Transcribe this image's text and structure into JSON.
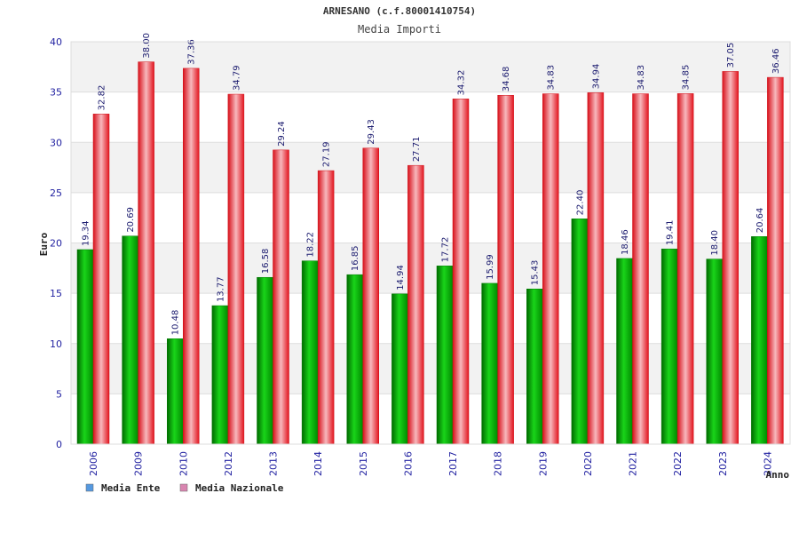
{
  "chart_data": {
    "type": "bar",
    "title": "ARNESANO (c.f.80001410754)",
    "subtitle": "Media Importi",
    "xlabel": "Anno",
    "ylabel": "Euro",
    "ylim": [
      0,
      40
    ],
    "yticks": [
      0,
      5,
      10,
      15,
      20,
      25,
      30,
      35,
      40
    ],
    "grid": true,
    "legend_position": "bottom-left",
    "categories": [
      "2006",
      "2009",
      "2010",
      "2012",
      "2013",
      "2014",
      "2015",
      "2016",
      "2017",
      "2018",
      "2019",
      "2020",
      "2021",
      "2022",
      "2023",
      "2024"
    ],
    "series": [
      {
        "name": "Media Ente",
        "color": "#00b000",
        "legend_color": "#5599e0",
        "values": [
          19.34,
          20.69,
          10.48,
          13.77,
          16.58,
          18.22,
          16.85,
          14.94,
          17.72,
          15.99,
          15.43,
          22.4,
          18.46,
          19.41,
          18.4,
          20.64
        ],
        "labels": [
          "19.34",
          "20.69",
          "10.48",
          "13.77",
          "16.58",
          "18.22",
          "16.85",
          "14.94",
          "17.72",
          "15.99",
          "15.43",
          "22.40",
          "18.46",
          "19.41",
          "18.40",
          "20.64"
        ]
      },
      {
        "name": "Media Nazionale",
        "color": "#e8202a",
        "legend_color": "#d985b0",
        "values": [
          32.82,
          38.0,
          37.36,
          34.79,
          29.24,
          27.19,
          29.43,
          27.71,
          34.32,
          34.68,
          34.83,
          34.94,
          34.83,
          34.85,
          37.05,
          36.46
        ],
        "labels": [
          "32.82",
          "38.00",
          "37.36",
          "34.79",
          "29.24",
          "27.19",
          "29.43",
          "27.71",
          "34.32",
          "34.68",
          "34.83",
          "34.94",
          "34.83",
          "34.85",
          "37.05",
          "36.46"
        ]
      }
    ]
  }
}
